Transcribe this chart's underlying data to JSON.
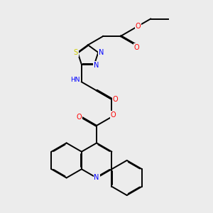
{
  "background_color": "#ececec",
  "bond_color": "#000000",
  "colors": {
    "N": "#0000ff",
    "O": "#ff0000",
    "S": "#cccc00",
    "H": "#008080",
    "C": "#000000"
  },
  "lw": 1.4,
  "fs": 6.5
}
